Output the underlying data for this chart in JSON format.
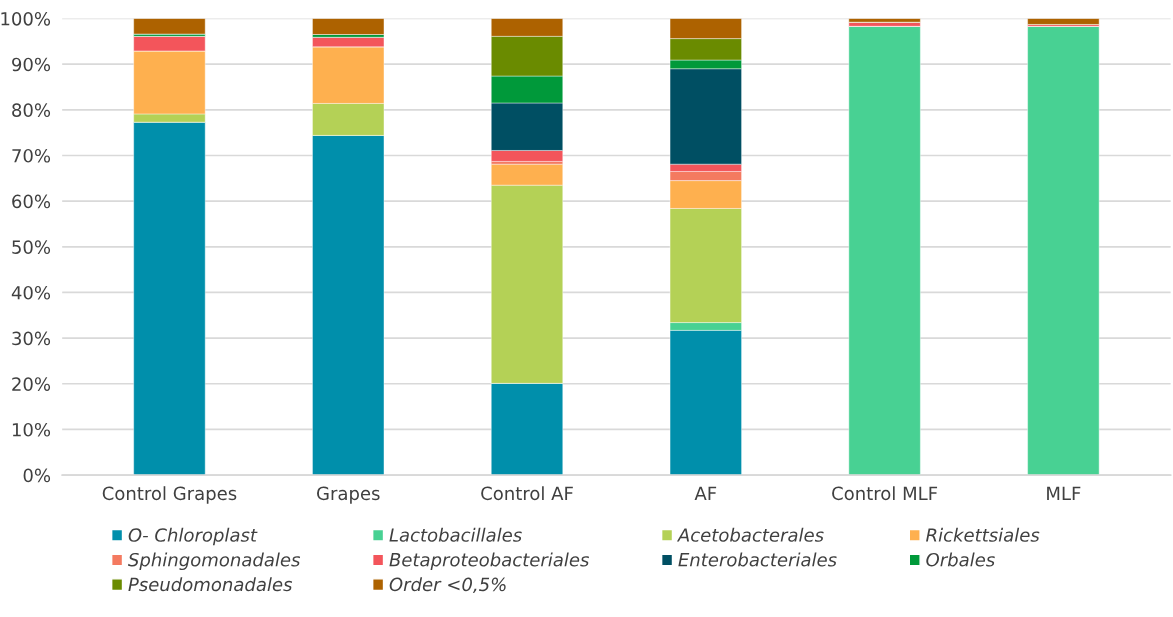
{
  "chart_data": {
    "type": "bar",
    "stacked": true,
    "categories": [
      "Control Grapes",
      "Grapes",
      "Control AF",
      "AF",
      "Control MLF",
      "MLF"
    ],
    "series": [
      {
        "name": "O- Chloroplast",
        "color": "#008fab",
        "values": [
          77.3,
          74.4,
          20.1,
          31.7,
          0,
          0
        ]
      },
      {
        "name": "Lactobacillales",
        "color": "#48d193",
        "values": [
          0,
          0,
          0,
          1.7,
          98.3,
          98.3
        ]
      },
      {
        "name": "Acetobacterales",
        "color": "#b4d156",
        "values": [
          1.8,
          7.0,
          43.4,
          25.0,
          0,
          0
        ]
      },
      {
        "name": "Rickettsiales",
        "color": "#feb04f",
        "values": [
          13.8,
          12.4,
          4.6,
          6.1,
          0,
          0
        ]
      },
      {
        "name": "Sphingomonadales",
        "color": "#f47a60",
        "values": [
          0,
          0,
          0.6,
          2.0,
          0,
          0
        ]
      },
      {
        "name": "Betaproteobacteriales",
        "color": "#f3555b",
        "values": [
          3.2,
          2.1,
          2.4,
          1.6,
          0.9,
          0.4
        ]
      },
      {
        "name": "Enterobacteriales",
        "color": "#004f63",
        "values": [
          0,
          0,
          10.4,
          20.9,
          0,
          0
        ]
      },
      {
        "name": "Orbales",
        "color": "#00993a",
        "values": [
          0.5,
          0.6,
          5.9,
          1.9,
          0,
          0
        ]
      },
      {
        "name": "Pseudomonadales",
        "color": "#6a8b00",
        "values": [
          0,
          0,
          8.7,
          4.7,
          0,
          0
        ]
      },
      {
        "name": "Order <0,5%",
        "color": "#ad6200",
        "values": [
          3.4,
          3.5,
          3.9,
          4.4,
          0.8,
          1.3
        ]
      }
    ],
    "ylim": [
      0,
      100
    ],
    "yticks": [
      {
        "value": 0,
        "label": "0%"
      },
      {
        "value": 10,
        "label": "10%"
      },
      {
        "value": 20,
        "label": "20%"
      },
      {
        "value": 30,
        "label": "30%"
      },
      {
        "value": 40,
        "label": "40%"
      },
      {
        "value": 50,
        "label": "50%"
      },
      {
        "value": 60,
        "label": "60%"
      },
      {
        "value": 70,
        "label": "70%"
      },
      {
        "value": 80,
        "label": "80%"
      },
      {
        "value": 90,
        "label": "90%"
      },
      {
        "value": 100,
        "label": "100%"
      }
    ],
    "grid": "y",
    "legend": "bottom"
  }
}
